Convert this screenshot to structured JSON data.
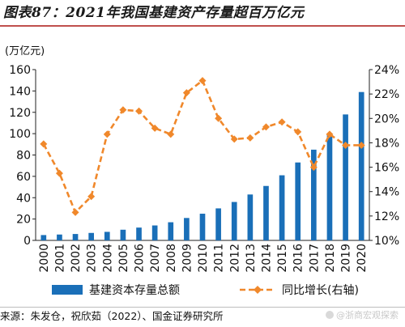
{
  "figure": {
    "title": "图表87：2021年我国基建资产存量超百万亿元",
    "unit_label": "(万亿元)",
    "source": "来源：朱发仓，祝欣茹（2022）、国金证券研究所",
    "watermark": "@浙商宏观探索"
  },
  "colors": {
    "bar": "#1a6fb8",
    "line": "#f0882b",
    "axis": "#222222",
    "title_rule": "#c0504d"
  },
  "chart_data": {
    "type": "bar",
    "x": [
      "2000",
      "2001",
      "2002",
      "2003",
      "2004",
      "2005",
      "2006",
      "2007",
      "2008",
      "2009",
      "2010",
      "2011",
      "2012",
      "2013",
      "2014",
      "2015",
      "2016",
      "2017",
      "2018",
      "2019",
      "2020"
    ],
    "series": [
      {
        "name": "基建资本存量总额",
        "type": "bar",
        "axis": "left",
        "values": [
          5,
          5.5,
          6,
          7,
          8,
          10,
          12,
          14,
          17,
          21,
          25,
          30,
          36,
          43,
          51,
          61,
          73,
          85,
          100,
          118,
          139
        ]
      },
      {
        "name": "同比增长(右轴)",
        "type": "line",
        "axis": "right",
        "unit": "%",
        "values": [
          17.9,
          15.5,
          12.3,
          13.6,
          18.7,
          20.7,
          20.6,
          19.2,
          18.7,
          22.1,
          23.1,
          20.0,
          18.3,
          18.4,
          19.3,
          19.7,
          18.9,
          16.0,
          18.7,
          17.8,
          17.8
        ]
      }
    ],
    "ylim_left": [
      0,
      160
    ],
    "yticks_left": [
      "0",
      "20",
      "40",
      "60",
      "80",
      "100",
      "120",
      "140",
      "160"
    ],
    "ylim_right": [
      10,
      24
    ],
    "yticks_right": [
      "10%",
      "12%",
      "14%",
      "16%",
      "18%",
      "20%",
      "22%",
      "24%"
    ],
    "grid": false,
    "legend_position": "bottom"
  }
}
